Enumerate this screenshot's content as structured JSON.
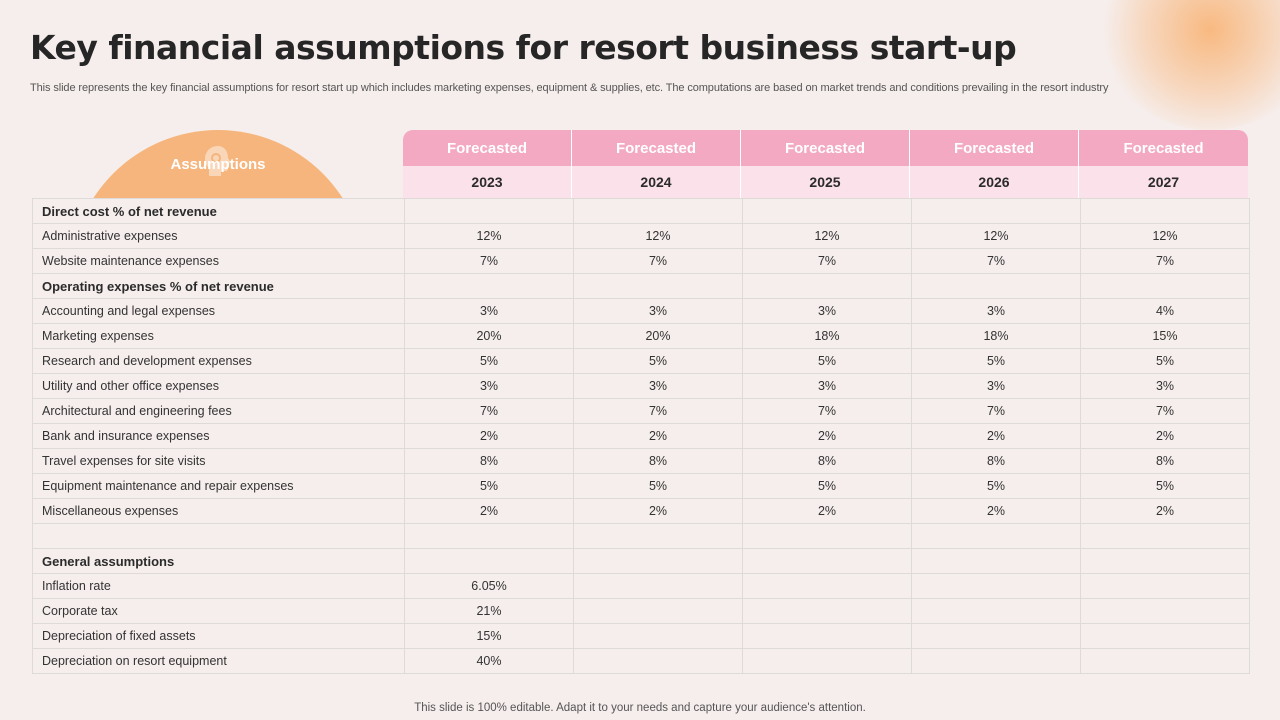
{
  "title": "Key financial assumptions for resort business start-up",
  "subtitle": "This slide represents the key financial assumptions for resort start up which includes marketing expenses, equipment & supplies, etc. The computations are based on market trends and conditions prevailing in the resort industry",
  "assumptions_label": "Assumptions",
  "columns": [
    {
      "forecast": "Forecasted",
      "year": "2023"
    },
    {
      "forecast": "Forecasted",
      "year": "2024"
    },
    {
      "forecast": "Forecasted",
      "year": "2025"
    },
    {
      "forecast": "Forecasted",
      "year": "2026"
    },
    {
      "forecast": "Forecasted",
      "year": "2027"
    }
  ],
  "rows": [
    {
      "label": "Direct cost % of net revenue",
      "section": true,
      "values": [
        "",
        "",
        "",
        "",
        ""
      ]
    },
    {
      "label": "Administrative expenses",
      "values": [
        "12%",
        "12%",
        "12%",
        "12%",
        "12%"
      ]
    },
    {
      "label": "Website maintenance expenses",
      "values": [
        "7%",
        "7%",
        "7%",
        "7%",
        "7%"
      ]
    },
    {
      "label": "Operating expenses % of net revenue",
      "section": true,
      "values": [
        "",
        "",
        "",
        "",
        ""
      ]
    },
    {
      "label": "Accounting and legal expenses",
      "values": [
        "3%",
        "3%",
        "3%",
        "3%",
        "4%"
      ]
    },
    {
      "label": "Marketing expenses",
      "values": [
        "20%",
        "20%",
        "18%",
        "18%",
        "15%"
      ]
    },
    {
      "label": "Research and development  expenses",
      "values": [
        "5%",
        "5%",
        "5%",
        "5%",
        "5%"
      ]
    },
    {
      "label": "Utility and other office expenses",
      "values": [
        "3%",
        "3%",
        "3%",
        "3%",
        "3%"
      ]
    },
    {
      "label": "Architectural and engineering fees",
      "values": [
        "7%",
        "7%",
        "7%",
        "7%",
        "7%"
      ]
    },
    {
      "label": "Bank and insurance expenses",
      "values": [
        "2%",
        "2%",
        "2%",
        "2%",
        "2%"
      ]
    },
    {
      "label": "Travel  expenses for site visits",
      "values": [
        "8%",
        "8%",
        "8%",
        "8%",
        "8%"
      ]
    },
    {
      "label": "Equipment maintenance and repair expenses",
      "values": [
        "5%",
        "5%",
        "5%",
        "5%",
        "5%"
      ]
    },
    {
      "label": "Miscellaneous expenses",
      "values": [
        "2%",
        "2%",
        "2%",
        "2%",
        "2%"
      ]
    },
    {
      "label": "",
      "values": [
        "",
        "",
        "",
        "",
        ""
      ]
    },
    {
      "label": "General assumptions",
      "section": true,
      "values": [
        "",
        "",
        "",
        "",
        ""
      ]
    },
    {
      "label": "Inflation rate",
      "values": [
        "6.05%",
        "",
        "",
        "",
        ""
      ]
    },
    {
      "label": "Corporate  tax",
      "values": [
        "21%",
        "",
        "",
        "",
        ""
      ]
    },
    {
      "label": "Depreciation  of fixed assets",
      "values": [
        "15%",
        "",
        "",
        "",
        ""
      ]
    },
    {
      "label": "Depreciation  on resort equipment",
      "values": [
        "40%",
        "",
        "",
        "",
        ""
      ]
    }
  ],
  "footer": "This slide is 100% editable. Adapt it to your needs and capture your audience's attention.",
  "colors": {
    "background": "#f6eeec",
    "forecast_header": "#f4a9c3",
    "year_header": "#fbe1e9",
    "assumptions_arc": "#f5b57d"
  }
}
